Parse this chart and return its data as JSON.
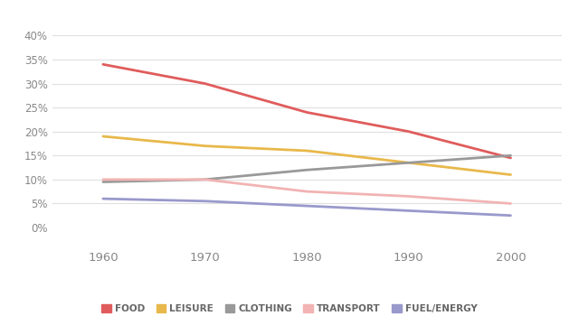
{
  "years": [
    1960,
    1970,
    1980,
    1990,
    2000
  ],
  "series": {
    "FOOD": [
      34,
      30,
      24,
      20,
      14.5
    ],
    "LEISURE": [
      19,
      17,
      16,
      13.5,
      11
    ],
    "CLOTHING": [
      9.5,
      10,
      12,
      13.5,
      15
    ],
    "TRANSPORT": [
      10,
      10,
      7.5,
      6.5,
      5
    ],
    "FUEL/ENERGY": [
      6,
      5.5,
      4.5,
      3.5,
      2.5
    ]
  },
  "colors": {
    "FOOD": "#e05c5c",
    "LEISURE": "#e8b84b",
    "CLOTHING": "#999999",
    "TRANSPORT": "#f2b3b3",
    "FUEL/ENERGY": "#9999cc"
  },
  "ylim": [
    0,
    42
  ],
  "yticks": [
    0,
    5,
    10,
    15,
    20,
    25,
    30,
    35,
    40
  ],
  "xticks": [
    1960,
    1970,
    1980,
    1990,
    2000
  ],
  "background_color": "#ffffff",
  "grid_color": "#e0e0e0",
  "linewidth": 2.0,
  "legend_fontsize": 7.5,
  "tick_fontsize": 8.5,
  "tick_color": "#888888"
}
